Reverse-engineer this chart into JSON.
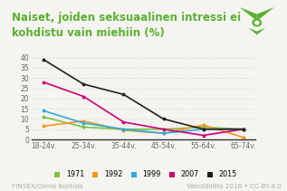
{
  "title_line1": "Naiset, joiden seksuaalinen intressi ei",
  "title_line2": "kohdistu vain miehiin (%)",
  "title_color": "#5ab031",
  "title_fontsize": 8.5,
  "categories": [
    "18-24v.",
    "25-34v.",
    "35-44v.",
    "45-54v.",
    "55-64v.",
    "65-74v."
  ],
  "series": {
    "1971": {
      "values": [
        11,
        6,
        5,
        5,
        6,
        5
      ],
      "color": "#7dc142"
    },
    "1992": {
      "values": [
        6.5,
        9,
        4.5,
        3,
        7,
        1
      ],
      "color": "#f7941d"
    },
    "1999": {
      "values": [
        14,
        8,
        5,
        3,
        5,
        5
      ],
      "color": "#29abe2"
    },
    "2007": {
      "values": [
        28,
        21,
        8.5,
        5,
        2,
        5
      ],
      "color": "#cc007a"
    },
    "2015": {
      "values": [
        39,
        27,
        22,
        10,
        5,
        5
      ],
      "color": "#231f20"
    }
  },
  "ylim": [
    0,
    42
  ],
  "yticks": [
    0,
    5,
    10,
    15,
    20,
    25,
    30,
    35,
    40
  ],
  "background_color": "#f5f4f0",
  "plot_bg_color": "#f5f4f0",
  "grid_color": "#bbbbbb",
  "footer_left": "FINSEX/Osmo Kontula",
  "footer_right": "Väestöliitto 2016 • CC-BY-4.0",
  "footer_fontsize": 5.2,
  "footer_color": "#aaaaaa",
  "legend_order": [
    "1971",
    "1992",
    "1999",
    "2007",
    "2015"
  ],
  "logo_color": "#5ab031"
}
